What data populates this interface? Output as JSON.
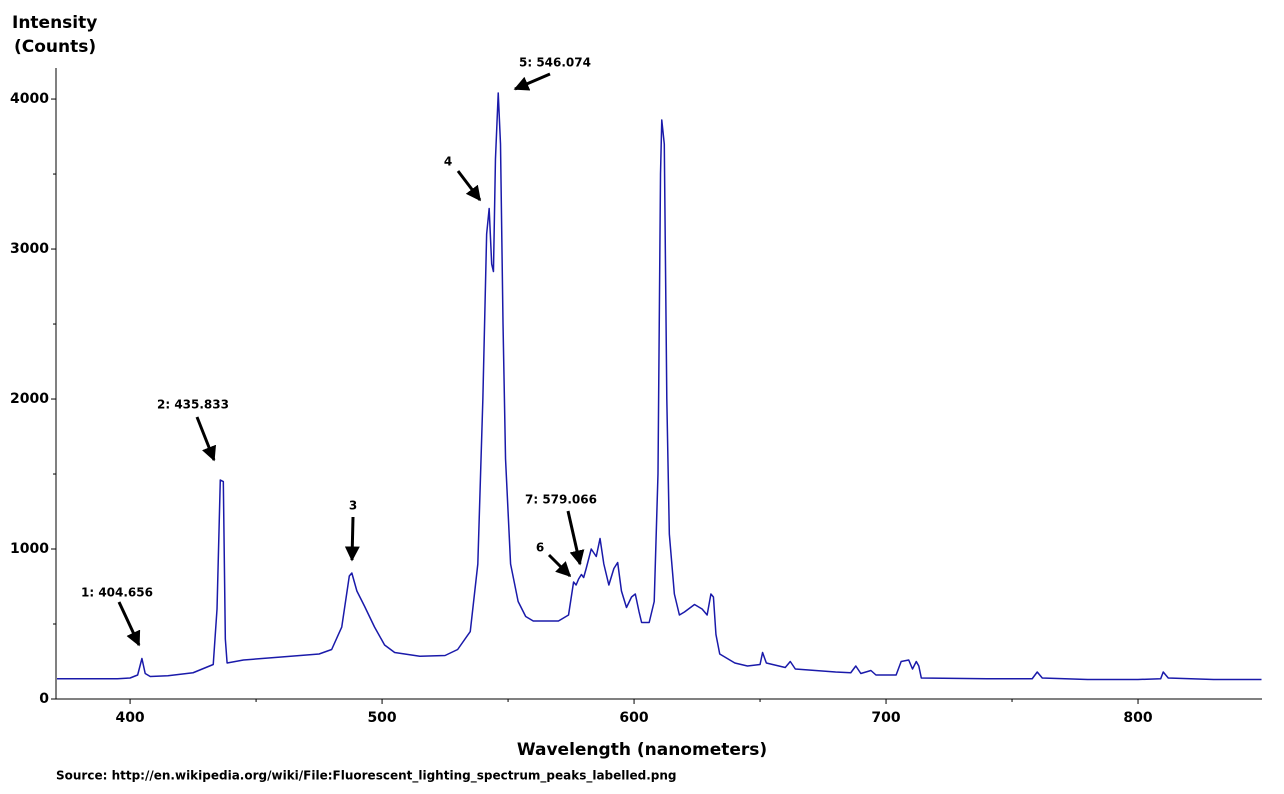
{
  "chart_data": {
    "type": "line",
    "y_label": [
      "Intensity",
      "(Counts)"
    ],
    "x_label": "Wavelength (nanometers)",
    "source": "Source: http://en.wikipedia.org/wiki/File:Fluorescent_lighting_spectrum_peaks_labelled.png",
    "annotations": [
      "1: 404.656",
      "2: 435.833",
      "3",
      "4",
      "5: 546.074",
      "6",
      "7: 579.066"
    ],
    "xlim": [
      370.6,
      849.2
    ],
    "ylim": [
      0,
      4207
    ],
    "xticks": [
      400,
      500,
      600,
      700,
      800
    ],
    "x_minor_ticks": [
      450,
      550,
      650,
      750
    ],
    "yticks": [
      0,
      1000,
      2000,
      3000,
      4000
    ],
    "y_minor_ticks": [
      500,
      1500,
      2500,
      3500
    ],
    "series": [
      {
        "color": "#1a1aaa",
        "x": [
          371,
          380,
          395,
          400,
          403,
          404.7,
          406,
          408,
          415,
          425,
          433,
          434.5,
          435.8,
          437,
          437.8,
          438.5,
          445,
          460,
          475,
          480,
          484,
          487,
          488,
          490,
          493,
          497,
          501,
          505,
          515,
          525,
          530,
          535,
          538,
          540,
          541.5,
          542.5,
          543.5,
          544.2,
          545,
          546.1,
          547,
          548,
          549,
          551,
          554,
          557,
          560,
          570,
          574,
          576,
          577,
          578,
          579.1,
          580,
          581,
          583,
          585,
          586.5,
          588,
          590,
          592,
          593.5,
          595,
          597,
          599,
          600.5,
          602,
          603,
          606,
          608,
          609.5,
          610.5,
          611,
          612,
          613,
          614,
          616,
          618,
          620,
          624,
          627,
          629,
          630.5,
          631.5,
          632.5,
          634,
          640,
          645,
          650,
          651,
          652.5,
          660,
          662,
          664,
          680,
          686,
          688,
          690,
          694,
          696,
          704,
          706,
          709,
          710.5,
          712,
          713,
          714,
          740,
          758,
          760,
          762,
          780,
          800,
          809,
          810,
          812,
          830,
          849
        ],
        "values": [
          135,
          135,
          135,
          140,
          160,
          270,
          170,
          150,
          155,
          175,
          230,
          600,
          1460,
          1450,
          400,
          240,
          260,
          280,
          300,
          330,
          480,
          820,
          840,
          720,
          620,
          480,
          360,
          310,
          285,
          290,
          330,
          450,
          900,
          2000,
          3100,
          3270,
          2900,
          2850,
          3600,
          4040,
          3700,
          2500,
          1600,
          900,
          650,
          550,
          520,
          520,
          560,
          780,
          760,
          800,
          830,
          810,
          870,
          1000,
          950,
          1070,
          900,
          760,
          870,
          910,
          720,
          610,
          680,
          700,
          580,
          510,
          510,
          650,
          1500,
          3500,
          3860,
          3700,
          2000,
          1100,
          700,
          560,
          580,
          630,
          600,
          560,
          700,
          680,
          430,
          300,
          240,
          220,
          230,
          310,
          240,
          210,
          250,
          200,
          180,
          175,
          220,
          170,
          190,
          160,
          160,
          250,
          260,
          200,
          250,
          220,
          140,
          135,
          135,
          180,
          140,
          130,
          130,
          135,
          180,
          140,
          130,
          130
        ]
      }
    ]
  }
}
